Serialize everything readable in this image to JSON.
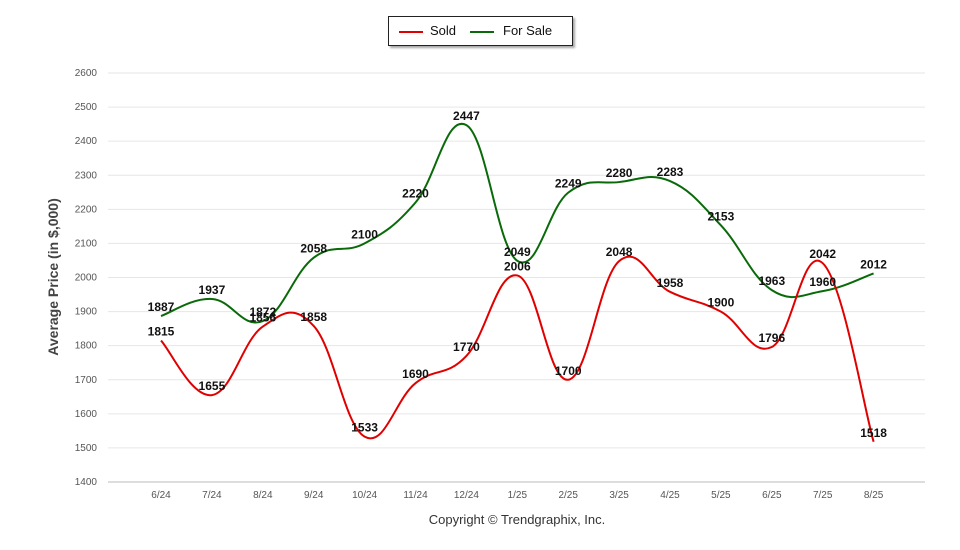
{
  "chart_data": {
    "type": "line",
    "ylabel": "Average Price (in $,000)",
    "footer": "Copyright © Trendgraphix, Inc.",
    "ylim": [
      1400,
      2600
    ],
    "yticks": [
      1400,
      1500,
      1600,
      1700,
      1800,
      1900,
      2000,
      2100,
      2200,
      2300,
      2400,
      2500,
      2600
    ],
    "grid": true,
    "legend_position": "top-center",
    "categories": [
      "6/24",
      "7/24",
      "8/24",
      "9/24",
      "10/24",
      "11/24",
      "12/24",
      "1/25",
      "2/25",
      "3/25",
      "4/25",
      "5/25",
      "6/25",
      "7/25",
      "8/25"
    ],
    "series": [
      {
        "name": "Sold",
        "color": "#e00000",
        "values": [
          1815,
          1655,
          1856,
          1858,
          1533,
          1690,
          1770,
          2006,
          1700,
          2048,
          1958,
          1900,
          1796,
          2042,
          1518
        ]
      },
      {
        "name": "For Sale",
        "color": "#0a6a0a",
        "values": [
          1887,
          1937,
          1872,
          2058,
          2100,
          2220,
          2447,
          2049,
          2249,
          2280,
          2283,
          2153,
          1963,
          1960,
          2012
        ]
      }
    ]
  }
}
